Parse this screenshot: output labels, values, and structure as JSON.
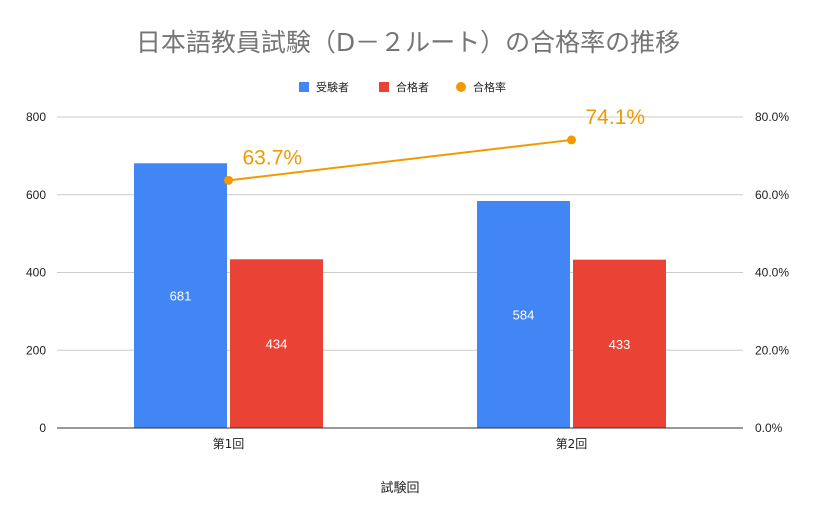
{
  "chart_data": {
    "type": "bar",
    "title": "日本語教員試験（D－２ルート）の合格率の推移",
    "xlabel": "試験回",
    "categories": [
      "第1回",
      "第2回"
    ],
    "series": [
      {
        "name": "受験者",
        "kind": "bar",
        "axis": "left",
        "values": [
          681,
          584
        ],
        "color": "#4285F4"
      },
      {
        "name": "合格者",
        "kind": "bar",
        "axis": "left",
        "values": [
          434,
          433
        ],
        "color": "#EA4335"
      },
      {
        "name": "合格率",
        "kind": "line",
        "axis": "right",
        "values": [
          63.7,
          74.1
        ],
        "value_labels": [
          "63.7%",
          "74.1%"
        ],
        "color": "#F29900"
      }
    ],
    "y_left": {
      "lim": [
        0,
        800
      ],
      "ticks": [
        "0",
        "200",
        "400",
        "600",
        "800"
      ]
    },
    "y_right": {
      "lim": [
        0,
        80
      ],
      "ticks": [
        "0.0%",
        "20.0%",
        "40.0%",
        "60.0%",
        "80.0%"
      ]
    },
    "grid": true,
    "legend_position": "top"
  }
}
